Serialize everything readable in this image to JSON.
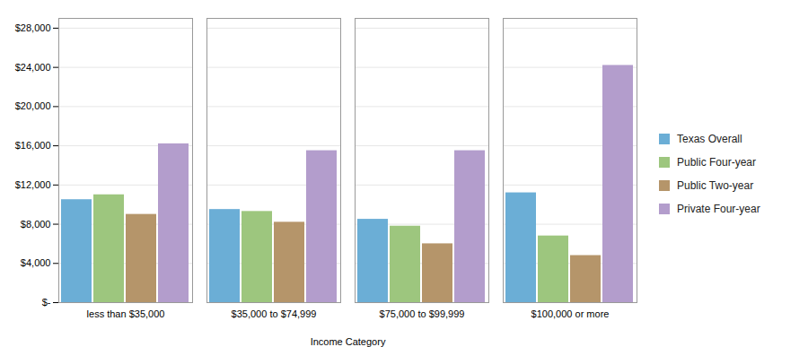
{
  "chart_data": {
    "type": "bar",
    "xlabel": "Income Category",
    "categories": [
      "less than $35,000",
      "$35,000 to $74,999",
      "$75,000 to $99,999",
      "$100,000 or more"
    ],
    "series": [
      {
        "name": "Texas Overall",
        "color": "#6BAED6",
        "values": [
          10500,
          9500,
          8500,
          11200
        ]
      },
      {
        "name": "Public Four-year",
        "color": "#9DC67E",
        "values": [
          11000,
          9300,
          7800,
          6800
        ]
      },
      {
        "name": "Public Two-year",
        "color": "#B5956A",
        "values": [
          9000,
          8200,
          6000,
          4800
        ]
      },
      {
        "name": "Private Four-year",
        "color": "#B39DCC",
        "values": [
          16200,
          15500,
          15500,
          24200
        ]
      }
    ],
    "ylim": [
      0,
      29000
    ],
    "yticks": [
      {
        "value": 0,
        "label": "$-"
      },
      {
        "value": 4000,
        "label": "$4,000"
      },
      {
        "value": 8000,
        "label": "$8,000"
      },
      {
        "value": 12000,
        "label": "$12,000"
      },
      {
        "value": 16000,
        "label": "$16,000"
      },
      {
        "value": 20000,
        "label": "$20,000"
      },
      {
        "value": 24000,
        "label": "$24,000"
      },
      {
        "value": 28000,
        "label": "$28,000"
      }
    ],
    "grid": true,
    "legend": "right"
  }
}
